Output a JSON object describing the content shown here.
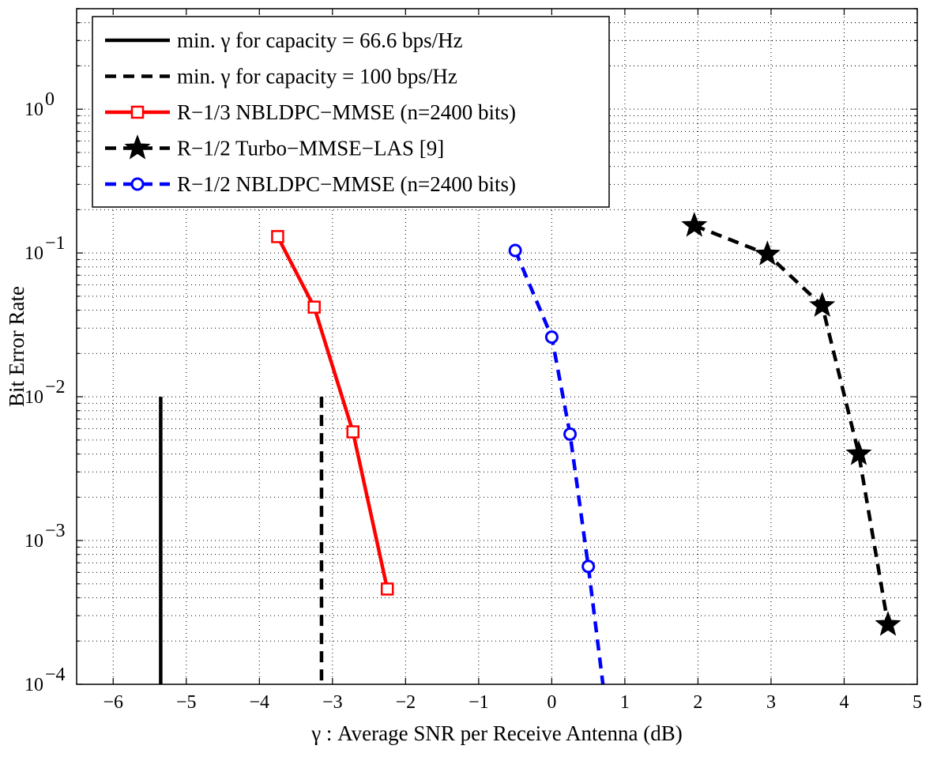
{
  "chart_data": {
    "type": "line",
    "xlabel": "γ : Average SNR per Receive Antenna (dB)",
    "ylabel": "Bit Error Rate",
    "xlim": [
      -6.5,
      5
    ],
    "ylim": [
      0.0001,
      5
    ],
    "yscale": "log",
    "grid": true,
    "legend_position": "top-left",
    "x_ticks": [
      -6,
      -5,
      -4,
      -3,
      -2,
      -1,
      0,
      1,
      2,
      3,
      4,
      5
    ],
    "x_tick_labels": [
      "−6",
      "−5",
      "−4",
      "−3",
      "−2",
      "−1",
      "0",
      "1",
      "2",
      "3",
      "4",
      "5"
    ],
    "y_ticks": [
      0.0001,
      0.001,
      0.01,
      0.1,
      1
    ],
    "y_tick_exponents": [
      "−4",
      "−3",
      "−2",
      "−1",
      "0"
    ],
    "y_tick_base": "10",
    "series": [
      {
        "name": "min. γ for capacity = 66.6 bps/Hz",
        "color": "#000000",
        "dash": "solid",
        "marker": "none",
        "x": [
          -5.35,
          -5.35
        ],
        "y": [
          0.01,
          0.0001
        ]
      },
      {
        "name": "min. γ for capacity = 100 bps/Hz",
        "color": "#000000",
        "dash": "dashed",
        "marker": "none",
        "x": [
          -3.15,
          -3.15
        ],
        "y": [
          0.01,
          0.0001
        ]
      },
      {
        "name": "R−1/3 NBLDPC−MMSE (n=2400 bits)",
        "color": "#ff0000",
        "dash": "solid",
        "marker": "square",
        "x": [
          -3.75,
          -3.25,
          -2.72,
          -2.25
        ],
        "y": [
          0.13,
          0.042,
          0.0057,
          0.00046
        ]
      },
      {
        "name": "R−1/2 Turbo−MMSE−LAS [9]",
        "color": "#000000",
        "dash": "dashed",
        "marker": "star",
        "x": [
          1.95,
          2.95,
          3.7,
          4.2,
          4.6
        ],
        "y": [
          0.155,
          0.098,
          0.043,
          0.004,
          0.00026
        ]
      },
      {
        "name": "R−1/2 NBLDPC−MMSE (n=2400 bits)",
        "color": "#0000ff",
        "dash": "dashed",
        "marker": "circle",
        "x": [
          -0.5,
          0.0,
          0.25,
          0.5,
          0.7
        ],
        "y": [
          0.104,
          0.026,
          0.0055,
          0.00066,
          0.0001
        ],
        "marker_count": 4
      }
    ]
  }
}
